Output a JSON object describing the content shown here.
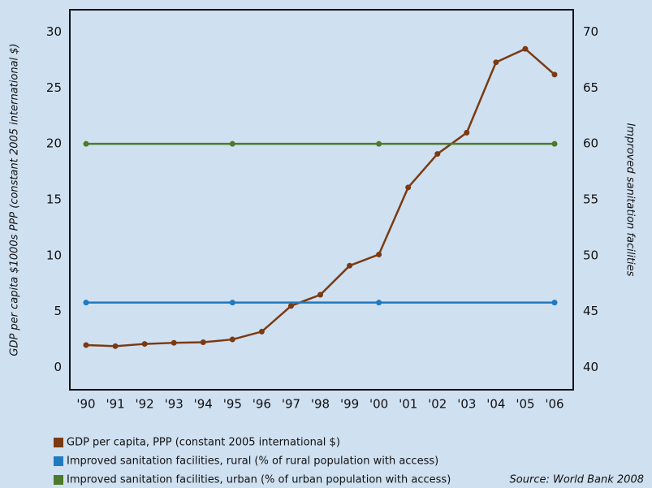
{
  "chart_data": {
    "type": "line",
    "y_label": "GDP per capita $1000s PPP (constant 2005 international $)",
    "y2_label": "Improved sanitation facilities",
    "source": "Source: World Bank 2008",
    "categories": [
      "'90",
      "'91",
      "'92",
      "'93",
      "'94",
      "'95",
      "'96",
      "'97",
      "'98",
      "'99",
      "'00",
      "'01",
      "'02",
      "'03",
      "'04",
      "'05",
      "'06"
    ],
    "series": [
      {
        "name": "GDP per capita, PPP (constant 2005 international $)",
        "color": "#7b3a12",
        "values": [
          2.0,
          1.9,
          2.1,
          2.2,
          2.25,
          2.5,
          3.2,
          5.5,
          6.5,
          9.1,
          10.1,
          16.1,
          19.1,
          21.0,
          27.3,
          28.5,
          26.2
        ]
      },
      {
        "name": "Improved sanitation facilities, rural (% of rural population with access)",
        "color": "#1f7ac0",
        "axis": "y2",
        "x": [
          "'90",
          "'95",
          "'00",
          "'06"
        ],
        "values": [
          45.8,
          45.8,
          45.8,
          45.8
        ]
      },
      {
        "name": "Improved sanitation facilities, urban (% of urban population with access)",
        "color": "#4d7a2a",
        "axis": "y2",
        "x": [
          "'90",
          "'95",
          "'00",
          "'06"
        ],
        "values": [
          60,
          60,
          60,
          60
        ]
      }
    ],
    "ylim": [
      -2,
      32
    ],
    "yticks": [
      0,
      5,
      10,
      15,
      20,
      25,
      30
    ],
    "y2lim": [
      38,
      72
    ],
    "y2ticks": [
      40,
      45,
      50,
      55,
      60,
      65,
      70
    ],
    "legend": "bottom-left"
  }
}
